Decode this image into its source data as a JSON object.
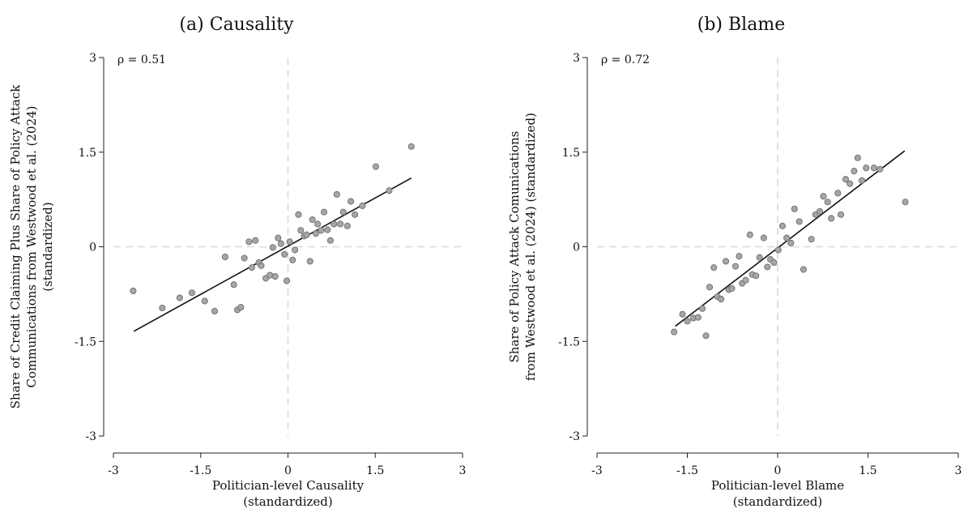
{
  "chart_data": [
    {
      "type": "scatter",
      "title": "(a) Causality",
      "xlabel": [
        "Politician-level Causality",
        "(standardized)"
      ],
      "ylabel": [
        "Share of Credit Claiming Plus Share of Policy Attack",
        "Communications from Westwood et al. (2024)",
        "(standardized)"
      ],
      "annotation": "ρ = 0.51",
      "xlim": [
        -3,
        3
      ],
      "ylim": [
        -3,
        3
      ],
      "xticks": [
        "-3",
        "-1.5",
        "0",
        "1.5",
        "3"
      ],
      "yticks": [
        "-3",
        "-1.5",
        "0",
        "1.5",
        "3"
      ],
      "reference_lines": "dashed at x=0 and y=0",
      "marker_color": "#a6a6a6",
      "fit_line": {
        "x": [
          -2.65,
          2.12
        ],
        "y": [
          -1.34,
          1.09
        ]
      },
      "points": [
        [
          -2.66,
          -0.7
        ],
        [
          -2.16,
          -0.97
        ],
        [
          -1.86,
          -0.81
        ],
        [
          -1.65,
          -0.73
        ],
        [
          -1.43,
          -0.86
        ],
        [
          -1.26,
          -1.02
        ],
        [
          -1.08,
          -0.16
        ],
        [
          -0.93,
          -0.6
        ],
        [
          -0.87,
          -1.0
        ],
        [
          -0.81,
          -0.96
        ],
        [
          -0.75,
          -0.18
        ],
        [
          -0.67,
          0.08
        ],
        [
          -0.62,
          -0.33
        ],
        [
          -0.56,
          0.1
        ],
        [
          -0.5,
          -0.25
        ],
        [
          -0.46,
          -0.3
        ],
        [
          -0.38,
          -0.5
        ],
        [
          -0.31,
          -0.45
        ],
        [
          -0.26,
          -0.01
        ],
        [
          -0.22,
          -0.47
        ],
        [
          -0.17,
          0.14
        ],
        [
          -0.12,
          0.05
        ],
        [
          -0.06,
          -0.12
        ],
        [
          -0.02,
          -0.54
        ],
        [
          0.03,
          0.08
        ],
        [
          0.08,
          -0.21
        ],
        [
          0.12,
          -0.05
        ],
        [
          0.18,
          0.51
        ],
        [
          0.22,
          0.26
        ],
        [
          0.28,
          0.17
        ],
        [
          0.32,
          0.19
        ],
        [
          0.38,
          -0.23
        ],
        [
          0.42,
          0.43
        ],
        [
          0.48,
          0.21
        ],
        [
          0.51,
          0.36
        ],
        [
          0.57,
          0.26
        ],
        [
          0.62,
          0.55
        ],
        [
          0.68,
          0.27
        ],
        [
          0.73,
          0.1
        ],
        [
          0.79,
          0.36
        ],
        [
          0.84,
          0.83
        ],
        [
          0.9,
          0.36
        ],
        [
          0.95,
          0.55
        ],
        [
          1.02,
          0.33
        ],
        [
          1.08,
          0.72
        ],
        [
          1.15,
          0.51
        ],
        [
          1.28,
          0.65
        ],
        [
          1.51,
          1.27
        ],
        [
          1.74,
          0.89
        ],
        [
          2.12,
          1.59
        ]
      ]
    },
    {
      "type": "scatter",
      "title": "(b) Blame",
      "xlabel": [
        "Politician-level Blame",
        "(standardized)"
      ],
      "ylabel": [
        "Share of Policy Attack Comunications",
        "from Westwood et al. (2024) (standardized)"
      ],
      "annotation": "ρ = 0.72",
      "xlim": [
        -3,
        3
      ],
      "ylim": [
        -3,
        3
      ],
      "xticks": [
        "-3",
        "-1.5",
        "0",
        "1.5",
        "3"
      ],
      "yticks": [
        "-3",
        "-1.5",
        "0",
        "1.5",
        "3"
      ],
      "reference_lines": "dashed at x=0 and y=0",
      "marker_color": "#a6a6a6",
      "fit_line": {
        "x": [
          -1.7,
          2.11
        ],
        "y": [
          -1.26,
          1.52
        ]
      },
      "points": [
        [
          -1.72,
          -1.35
        ],
        [
          -1.58,
          -1.07
        ],
        [
          -1.5,
          -1.18
        ],
        [
          -1.4,
          -1.13
        ],
        [
          -1.32,
          -1.12
        ],
        [
          -1.25,
          -0.98
        ],
        [
          -1.19,
          -1.41
        ],
        [
          -1.13,
          -0.64
        ],
        [
          -1.06,
          -0.33
        ],
        [
          -1.0,
          -0.79
        ],
        [
          -0.94,
          -0.83
        ],
        [
          -0.86,
          -0.23
        ],
        [
          -0.81,
          -0.68
        ],
        [
          -0.76,
          -0.66
        ],
        [
          -0.7,
          -0.31
        ],
        [
          -0.64,
          -0.15
        ],
        [
          -0.59,
          -0.58
        ],
        [
          -0.53,
          -0.53
        ],
        [
          -0.46,
          0.19
        ],
        [
          -0.42,
          -0.44
        ],
        [
          -0.36,
          -0.46
        ],
        [
          -0.3,
          -0.17
        ],
        [
          -0.23,
          0.14
        ],
        [
          -0.17,
          -0.32
        ],
        [
          -0.12,
          -0.2
        ],
        [
          -0.06,
          -0.25
        ],
        [
          0.01,
          -0.05
        ],
        [
          0.08,
          0.33
        ],
        [
          0.15,
          0.14
        ],
        [
          0.22,
          0.06
        ],
        [
          0.28,
          0.6
        ],
        [
          0.36,
          0.4
        ],
        [
          0.43,
          -0.36
        ],
        [
          0.56,
          0.12
        ],
        [
          0.63,
          0.51
        ],
        [
          0.7,
          0.56
        ],
        [
          0.76,
          0.8
        ],
        [
          0.83,
          0.71
        ],
        [
          0.89,
          0.45
        ],
        [
          1.0,
          0.85
        ],
        [
          1.05,
          0.51
        ],
        [
          1.13,
          1.07
        ],
        [
          1.2,
          1.0
        ],
        [
          1.27,
          1.2
        ],
        [
          1.33,
          1.41
        ],
        [
          1.4,
          1.05
        ],
        [
          1.47,
          1.25
        ],
        [
          1.6,
          1.25
        ],
        [
          1.7,
          1.23
        ],
        [
          2.12,
          0.71
        ]
      ]
    }
  ]
}
